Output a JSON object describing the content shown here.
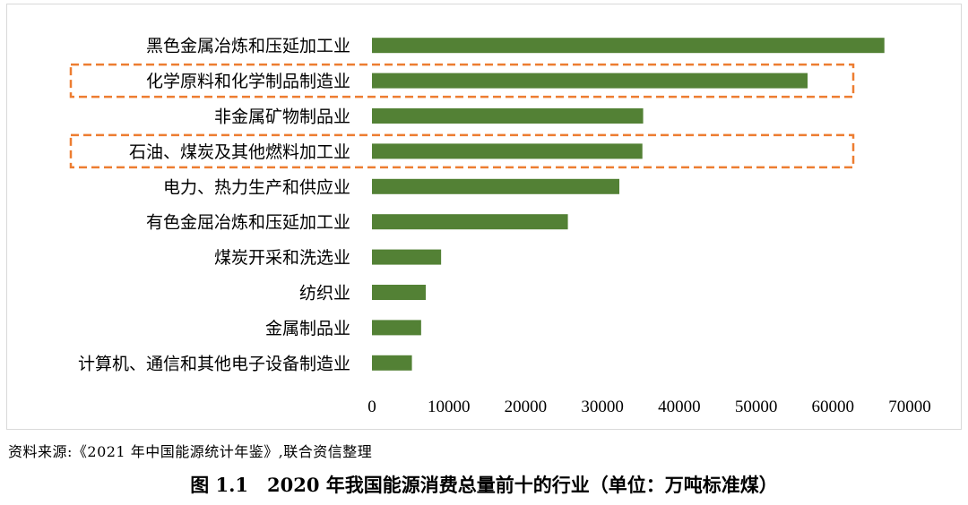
{
  "chart_data": {
    "type": "bar",
    "orientation": "horizontal",
    "categories": [
      "黑色金属冶炼和压延加工业",
      "化学原料和化学制品制造业",
      "非金属矿物制品业",
      "石油、煤炭及其他燃料加工业",
      "电力、热力生产和供应业",
      "有色金屈冶炼和压延加工业",
      "煤炭开采和洗选业",
      "纺织业",
      "金属制品业",
      "计算机、通信和其他电子设备制造业"
    ],
    "values": [
      66700,
      56700,
      35300,
      35200,
      32200,
      25500,
      9000,
      7000,
      6400,
      5200
    ],
    "xlim": [
      0,
      70000
    ],
    "xticks": [
      0,
      10000,
      20000,
      30000,
      40000,
      50000,
      60000,
      70000
    ],
    "highlighted_categories": [
      "化学原料和化学制品制造业",
      "石油、煤炭及其他燃料加工业"
    ],
    "grid": false,
    "title": "",
    "xlabel": "",
    "ylabel": ""
  },
  "colors": {
    "bar": "#538135",
    "highlight": "#ed7d31",
    "frame": "#d9d9d9"
  },
  "source_note": "资料来源:《2021 年中国能源统计年鉴》,联合资信整理",
  "caption": "图 1.1　2020 年我国能源消费总量前十的行业（单位：万吨标准煤）"
}
